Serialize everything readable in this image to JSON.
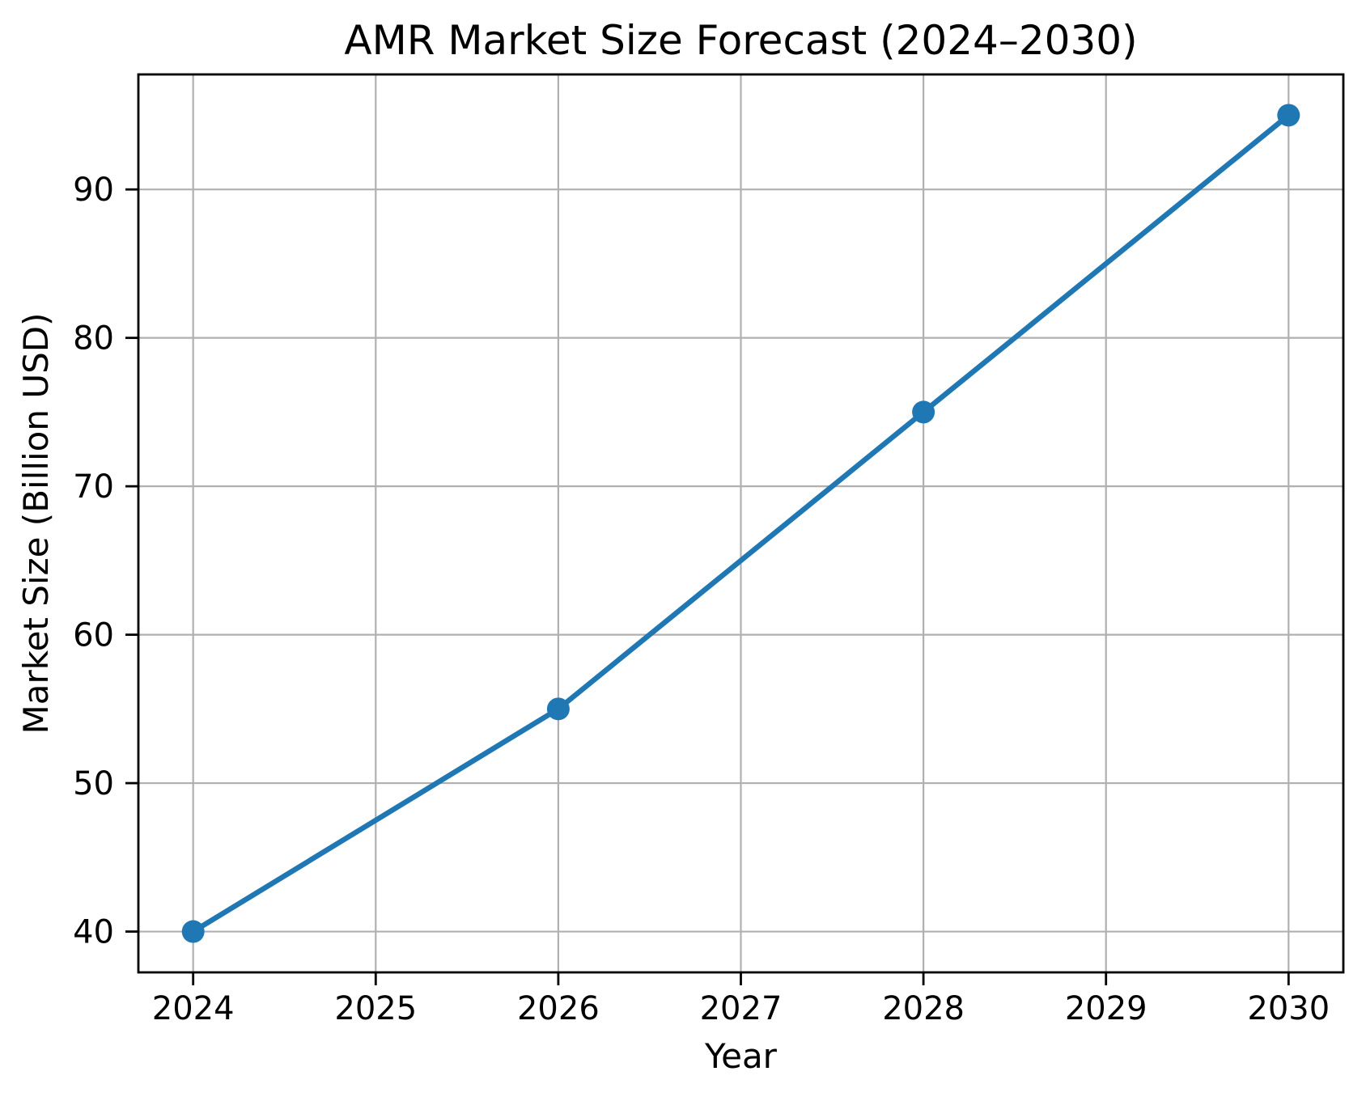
{
  "chart_data": {
    "type": "line",
    "title": "AMR Market Size Forecast (2024–2030)",
    "xlabel": "Year",
    "ylabel": "Market Size (Billion USD)",
    "x": [
      2024,
      2026,
      2028,
      2030
    ],
    "y": [
      40,
      55,
      75,
      95
    ],
    "xticks": [
      2024,
      2025,
      2026,
      2027,
      2028,
      2029,
      2030
    ],
    "yticks": [
      40,
      50,
      60,
      70,
      80,
      90
    ],
    "xlim": [
      2023.7,
      2030.3
    ],
    "ylim": [
      37.25,
      97.75
    ],
    "grid": true,
    "legend": "none",
    "marker": "circle",
    "line_color": "#1f77b4",
    "marker_color": "#1f77b4",
    "grid_color": "#b0b0b0",
    "spine_color": "#000000",
    "background_color": "#ffffff"
  }
}
